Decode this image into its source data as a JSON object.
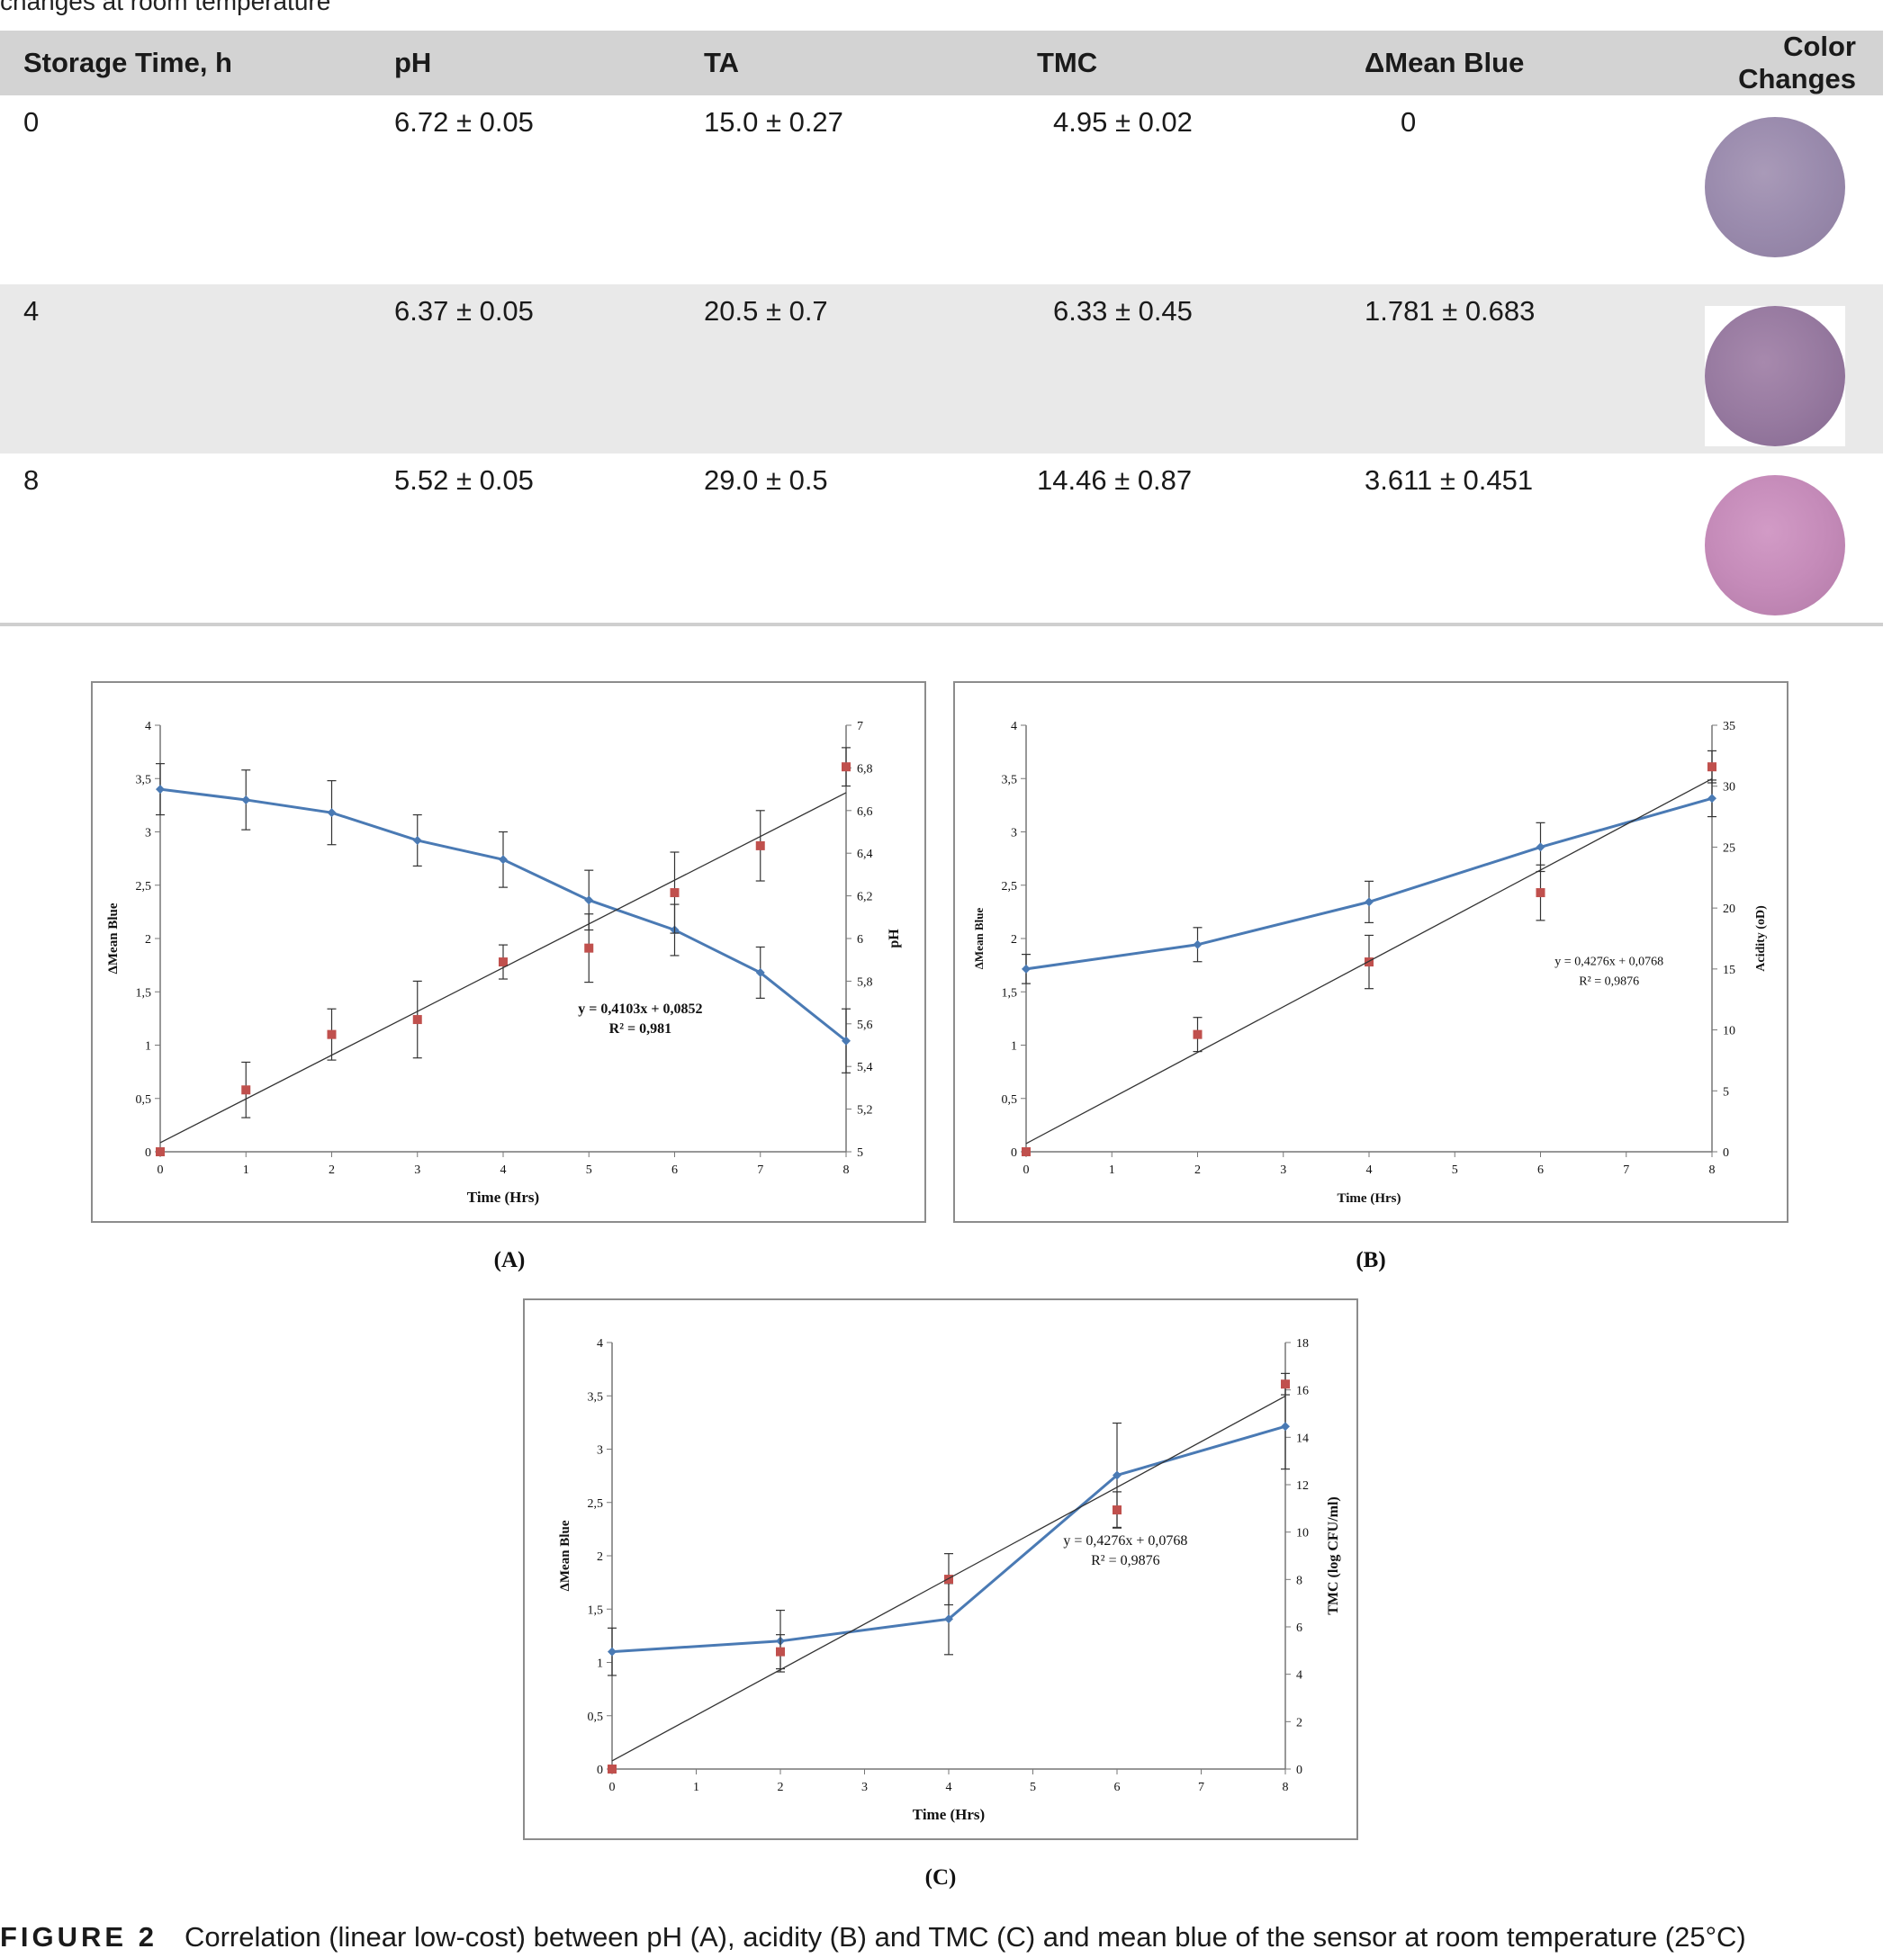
{
  "table": {
    "caption_fragment": "changes at room temperature",
    "headers": [
      "Storage Time, h",
      "pH",
      "TA",
      "TMC",
      "ΔMean Blue",
      "Color Changes"
    ],
    "rows": [
      {
        "time": "0",
        "ph": "6.72 ± 0.05",
        "ta": "15.0 ± 0.27",
        "tmc": "4.95 ± 0.02",
        "mean_blue": "0",
        "color": "#9b8cae"
      },
      {
        "time": "4",
        "ph": "6.37 ± 0.05",
        "ta": "20.5 ± 0.7",
        "tmc": "6.33 ± 0.45",
        "mean_blue": "1.781 ± 0.683",
        "color": "#977aa0"
      },
      {
        "time": "8",
        "ph": "5.52 ± 0.05",
        "ta": "29.0 ± 0.5",
        "tmc": "14.46 ± 0.87",
        "mean_blue": "3.611 ± 0.451",
        "color": "#c58bb9"
      }
    ]
  },
  "figure": {
    "caption_label": "FIGURE 2",
    "caption_text": "Correlation (linear low-cost) between pH (A), acidity (B) and TMC (C) and mean blue of the sensor at room temperature (25°C)"
  },
  "chart_data": [
    {
      "panel_label": "(A)",
      "type": "line",
      "xlabel": "Time  (Hrs)",
      "ylabel": "ΔMean Blue",
      "y2label": "pH",
      "xlim": [
        0,
        8
      ],
      "ylim": [
        0,
        4
      ],
      "y2lim": [
        5,
        7
      ],
      "x_ticks": [
        "0",
        "1",
        "2",
        "3",
        "4",
        "5",
        "6",
        "7",
        "8"
      ],
      "y_ticks": [
        "0",
        "0,5",
        "1",
        "1,5",
        "2",
        "2,5",
        "3",
        "3,5",
        "4"
      ],
      "y2_ticks": [
        "5",
        "5,2",
        "5,4",
        "5,6",
        "5,8",
        "6",
        "6,2",
        "6,4",
        "6,6",
        "6,8",
        "7"
      ],
      "series": [
        {
          "axis": "right",
          "style": "line-marker",
          "x": [
            0,
            1,
            2,
            3,
            4,
            5,
            6,
            7,
            8
          ],
          "y": [
            6.7,
            6.65,
            6.59,
            6.46,
            6.37,
            6.18,
            6.04,
            5.84,
            5.52
          ],
          "err": [
            0.12,
            0.14,
            0.15,
            0.12,
            0.13,
            0.14,
            0.12,
            0.12,
            0.15
          ]
        },
        {
          "axis": "left",
          "style": "square",
          "x": [
            0,
            1,
            2,
            3,
            4,
            5,
            6,
            7,
            8
          ],
          "y": [
            0,
            0.58,
            1.1,
            1.24,
            1.78,
            1.91,
            2.43,
            2.87,
            3.61
          ],
          "err": [
            0,
            0.26,
            0.24,
            0.36,
            0.16,
            0.32,
            0.38,
            0.33,
            0.18
          ]
        },
        {
          "axis": "left",
          "style": "trendline",
          "x": [
            0,
            8
          ],
          "y": [
            0.0852,
            3.3676
          ]
        }
      ],
      "annotation": [
        "y = 0,4103x + 0,0852",
        "R² = 0,981"
      ],
      "annotation_at": [
        5.6,
        1.3
      ]
    },
    {
      "panel_label": "(B)",
      "type": "line",
      "xlabel": "Time (Hrs)",
      "ylabel": "ΔMean Blue",
      "y2label": "Acidity (oD)",
      "xlim": [
        0,
        8
      ],
      "ylim": [
        0,
        4
      ],
      "y2lim": [
        0,
        35
      ],
      "x_ticks": [
        "0",
        "1",
        "2",
        "3",
        "4",
        "5",
        "6",
        "7",
        "8"
      ],
      "y_ticks": [
        "0",
        "0,5",
        "1",
        "1,5",
        "2",
        "2,5",
        "3",
        "3,5",
        "4"
      ],
      "y2_ticks": [
        "0",
        "5",
        "10",
        "15",
        "20",
        "25",
        "30",
        "35"
      ],
      "series": [
        {
          "axis": "right",
          "style": "line-marker",
          "x": [
            0,
            2,
            4,
            6,
            8
          ],
          "y": [
            15.0,
            17.0,
            20.5,
            25.0,
            29.0
          ],
          "err": [
            1.2,
            1.4,
            1.7,
            2.0,
            1.5
          ]
        },
        {
          "axis": "left",
          "style": "square",
          "x": [
            0,
            2,
            4,
            6,
            8
          ],
          "y": [
            0,
            1.1,
            1.78,
            2.43,
            3.61
          ],
          "err": [
            0,
            0.16,
            0.25,
            0.26,
            0.15
          ]
        },
        {
          "axis": "left",
          "style": "trendline",
          "x": [
            0,
            8
          ],
          "y": [
            0.0768,
            3.4976
          ]
        }
      ],
      "annotation": [
        "y = 0,4276x + 0,0768",
        "R² = 0,9876"
      ],
      "annotation_at": [
        6.8,
        1.75
      ]
    },
    {
      "panel_label": "(C)",
      "type": "line",
      "xlabel": "Time (Hrs)",
      "ylabel": "ΔMean Blue",
      "y2label": "TMC (log CFU/ml)",
      "xlim": [
        0,
        8
      ],
      "ylim": [
        0,
        4
      ],
      "y2lim": [
        0,
        18
      ],
      "x_ticks": [
        "0",
        "1",
        "2",
        "3",
        "4",
        "5",
        "6",
        "7",
        "8"
      ],
      "y_ticks": [
        "0",
        "0,5",
        "1",
        "1,5",
        "2",
        "2,5",
        "3",
        "3,5",
        "4"
      ],
      "y2_ticks": [
        "0",
        "2",
        "4",
        "6",
        "8",
        "10",
        "12",
        "14",
        "16",
        "18"
      ],
      "series": [
        {
          "axis": "right",
          "style": "line-marker",
          "x": [
            0,
            2,
            4,
            6,
            8
          ],
          "y": [
            4.95,
            5.4,
            6.33,
            12.4,
            14.46
          ],
          "err": [
            1.0,
            1.3,
            1.5,
            2.2,
            1.8
          ]
        },
        {
          "axis": "left",
          "style": "square",
          "x": [
            0,
            2,
            4,
            6,
            8
          ],
          "y": [
            0,
            1.1,
            1.78,
            2.43,
            3.61
          ],
          "err": [
            0,
            0.16,
            0.24,
            0.17,
            0.1
          ]
        },
        {
          "axis": "left",
          "style": "trendline",
          "x": [
            0,
            8
          ],
          "y": [
            0.0768,
            3.4976
          ]
        }
      ],
      "annotation": [
        "y = 0,4276x + 0,0768",
        "R² = 0,9876"
      ],
      "annotation_at": [
        6.1,
        2.1
      ]
    }
  ]
}
